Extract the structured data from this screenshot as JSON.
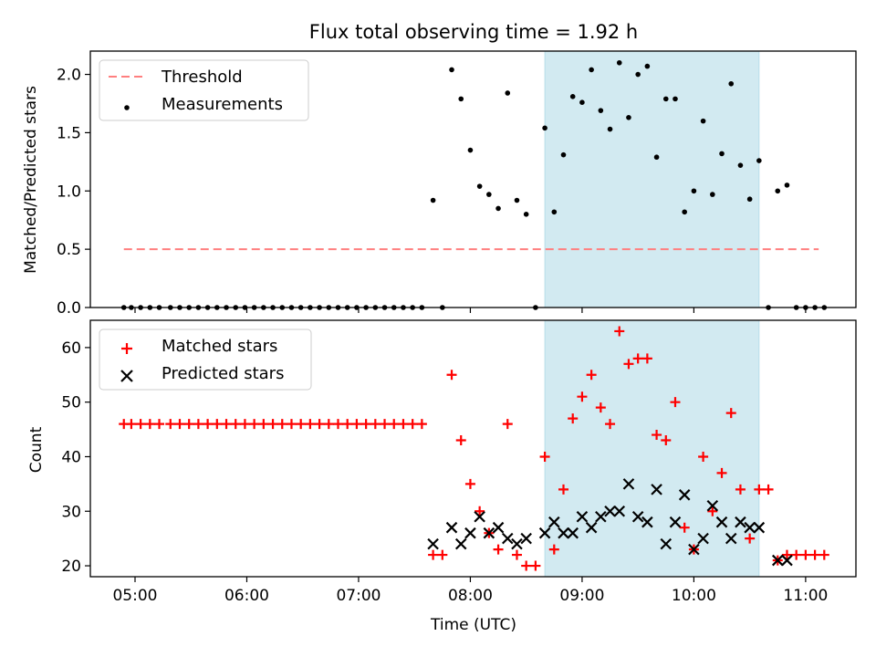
{
  "chart_data": [
    {
      "type": "scatter",
      "title": "Flux total observing time = 1.92 h",
      "xlabel": "",
      "ylabel": "Matched/Predicted stars",
      "ylim": [
        0,
        2.2
      ],
      "yticks": [
        "0.0",
        "0.5",
        "1.0",
        "1.5",
        "2.0"
      ],
      "xlim": [
        "04:36",
        "11:27"
      ],
      "highlight_span": {
        "start": "08:40",
        "end": "10:35",
        "color": "#add8e6"
      },
      "threshold": {
        "name": "Threshold",
        "y": 0.5,
        "x_start": "04:54",
        "x_end": "11:07",
        "color": "#ff7f7f",
        "style": "dashed"
      },
      "legend": {
        "location": "upper left",
        "entries": [
          "Threshold",
          "Measurements"
        ]
      },
      "series": [
        {
          "name": "Measurements",
          "color": "#000000",
          "marker": "dot",
          "points": [
            [
              "04:54",
              0
            ],
            [
              "04:58",
              0
            ],
            [
              "05:03",
              0
            ],
            [
              "05:08",
              0
            ],
            [
              "05:13",
              0
            ],
            [
              "05:19",
              0
            ],
            [
              "05:24",
              0
            ],
            [
              "05:29",
              0
            ],
            [
              "05:34",
              0
            ],
            [
              "05:39",
              0
            ],
            [
              "05:44",
              0
            ],
            [
              "05:49",
              0
            ],
            [
              "05:54",
              0
            ],
            [
              "05:59",
              0
            ],
            [
              "06:04",
              0
            ],
            [
              "06:09",
              0
            ],
            [
              "06:14",
              0
            ],
            [
              "06:19",
              0
            ],
            [
              "06:24",
              0
            ],
            [
              "06:29",
              0
            ],
            [
              "06:34",
              0
            ],
            [
              "06:39",
              0
            ],
            [
              "06:44",
              0
            ],
            [
              "06:49",
              0
            ],
            [
              "06:54",
              0
            ],
            [
              "06:59",
              0
            ],
            [
              "07:04",
              0
            ],
            [
              "07:09",
              0
            ],
            [
              "07:14",
              0
            ],
            [
              "07:19",
              0
            ],
            [
              "07:24",
              0
            ],
            [
              "07:29",
              0
            ],
            [
              "07:34",
              0
            ],
            [
              "07:40",
              0.92
            ],
            [
              "07:45",
              0
            ],
            [
              "07:50",
              2.04
            ],
            [
              "07:55",
              1.79
            ],
            [
              "08:00",
              1.35
            ],
            [
              "08:05",
              1.04
            ],
            [
              "08:10",
              0.97
            ],
            [
              "08:15",
              0.85
            ],
            [
              "08:20",
              1.84
            ],
            [
              "08:25",
              0.92
            ],
            [
              "08:30",
              0.8
            ],
            [
              "08:35",
              0
            ],
            [
              "08:40",
              1.54
            ],
            [
              "08:45",
              0.82
            ],
            [
              "08:50",
              1.31
            ],
            [
              "08:55",
              1.81
            ],
            [
              "09:00",
              1.76
            ],
            [
              "09:05",
              2.04
            ],
            [
              "09:10",
              1.69
            ],
            [
              "09:15",
              1.53
            ],
            [
              "09:20",
              2.1
            ],
            [
              "09:25",
              1.63
            ],
            [
              "09:30",
              2.0
            ],
            [
              "09:35",
              2.07
            ],
            [
              "09:40",
              1.29
            ],
            [
              "09:45",
              1.79
            ],
            [
              "09:50",
              1.79
            ],
            [
              "09:55",
              0.82
            ],
            [
              "10:00",
              1.0
            ],
            [
              "10:05",
              1.6
            ],
            [
              "10:10",
              0.97
            ],
            [
              "10:15",
              1.32
            ],
            [
              "10:20",
              1.92
            ],
            [
              "10:25",
              1.22
            ],
            [
              "10:30",
              0.93
            ],
            [
              "10:35",
              1.26
            ],
            [
              "10:40",
              0
            ],
            [
              "10:45",
              1.0
            ],
            [
              "10:50",
              1.05
            ],
            [
              "10:55",
              0
            ],
            [
              "11:00",
              0
            ],
            [
              "11:05",
              0
            ],
            [
              "11:10",
              0
            ]
          ]
        }
      ]
    },
    {
      "type": "scatter",
      "title": "",
      "xlabel": "Time (UTC)",
      "ylabel": "Count",
      "ylim": [
        18,
        65
      ],
      "yticks": [
        "20",
        "30",
        "40",
        "50",
        "60"
      ],
      "xticks": [
        "05:00",
        "06:00",
        "07:00",
        "08:00",
        "09:00",
        "10:00",
        "11:00"
      ],
      "xlim": [
        "04:36",
        "11:27"
      ],
      "highlight_span": {
        "start": "08:40",
        "end": "10:35",
        "color": "#add8e6"
      },
      "legend": {
        "location": "upper left",
        "entries": [
          "Matched stars",
          "Predicted stars"
        ]
      },
      "series": [
        {
          "name": "Matched stars",
          "color": "#ff0000",
          "marker": "plus",
          "points": [
            [
              "04:54",
              46
            ],
            [
              "04:58",
              46
            ],
            [
              "05:03",
              46
            ],
            [
              "05:08",
              46
            ],
            [
              "05:13",
              46
            ],
            [
              "05:19",
              46
            ],
            [
              "05:24",
              46
            ],
            [
              "05:29",
              46
            ],
            [
              "05:34",
              46
            ],
            [
              "05:39",
              46
            ],
            [
              "05:44",
              46
            ],
            [
              "05:49",
              46
            ],
            [
              "05:54",
              46
            ],
            [
              "05:59",
              46
            ],
            [
              "06:04",
              46
            ],
            [
              "06:09",
              46
            ],
            [
              "06:14",
              46
            ],
            [
              "06:19",
              46
            ],
            [
              "06:24",
              46
            ],
            [
              "06:29",
              46
            ],
            [
              "06:34",
              46
            ],
            [
              "06:39",
              46
            ],
            [
              "06:44",
              46
            ],
            [
              "06:49",
              46
            ],
            [
              "06:54",
              46
            ],
            [
              "06:59",
              46
            ],
            [
              "07:04",
              46
            ],
            [
              "07:09",
              46
            ],
            [
              "07:14",
              46
            ],
            [
              "07:19",
              46
            ],
            [
              "07:24",
              46
            ],
            [
              "07:29",
              46
            ],
            [
              "07:34",
              46
            ],
            [
              "07:40",
              22
            ],
            [
              "07:45",
              22
            ],
            [
              "07:50",
              55
            ],
            [
              "07:55",
              43
            ],
            [
              "08:00",
              35
            ],
            [
              "08:05",
              30
            ],
            [
              "08:10",
              26
            ],
            [
              "08:15",
              23
            ],
            [
              "08:20",
              46
            ],
            [
              "08:25",
              22
            ],
            [
              "08:30",
              20
            ],
            [
              "08:35",
              20
            ],
            [
              "08:40",
              40
            ],
            [
              "08:45",
              23
            ],
            [
              "08:50",
              34
            ],
            [
              "08:55",
              47
            ],
            [
              "09:00",
              51
            ],
            [
              "09:05",
              55
            ],
            [
              "09:10",
              49
            ],
            [
              "09:15",
              46
            ],
            [
              "09:20",
              63
            ],
            [
              "09:25",
              57
            ],
            [
              "09:30",
              58
            ],
            [
              "09:35",
              58
            ],
            [
              "09:40",
              44
            ],
            [
              "09:45",
              43
            ],
            [
              "09:50",
              50
            ],
            [
              "09:55",
              27
            ],
            [
              "10:00",
              23
            ],
            [
              "10:05",
              40
            ],
            [
              "10:10",
              30
            ],
            [
              "10:15",
              37
            ],
            [
              "10:20",
              48
            ],
            [
              "10:25",
              34
            ],
            [
              "10:30",
              25
            ],
            [
              "10:35",
              34
            ],
            [
              "10:40",
              34
            ],
            [
              "10:45",
              21
            ],
            [
              "10:50",
              22
            ],
            [
              "10:55",
              22
            ],
            [
              "11:00",
              22
            ],
            [
              "11:05",
              22
            ],
            [
              "11:10",
              22
            ]
          ]
        },
        {
          "name": "Predicted stars",
          "color": "#000000",
          "marker": "x",
          "points": [
            [
              "07:40",
              24
            ],
            [
              "07:50",
              27
            ],
            [
              "07:55",
              24
            ],
            [
              "08:00",
              26
            ],
            [
              "08:05",
              29
            ],
            [
              "08:10",
              26
            ],
            [
              "08:15",
              27
            ],
            [
              "08:20",
              25
            ],
            [
              "08:25",
              24
            ],
            [
              "08:30",
              25
            ],
            [
              "08:40",
              26
            ],
            [
              "08:45",
              28
            ],
            [
              "08:50",
              26
            ],
            [
              "08:55",
              26
            ],
            [
              "09:00",
              29
            ],
            [
              "09:05",
              27
            ],
            [
              "09:10",
              29
            ],
            [
              "09:15",
              30
            ],
            [
              "09:20",
              30
            ],
            [
              "09:25",
              35
            ],
            [
              "09:30",
              29
            ],
            [
              "09:35",
              28
            ],
            [
              "09:40",
              34
            ],
            [
              "09:45",
              24
            ],
            [
              "09:50",
              28
            ],
            [
              "09:55",
              33
            ],
            [
              "10:00",
              23
            ],
            [
              "10:05",
              25
            ],
            [
              "10:10",
              31
            ],
            [
              "10:15",
              28
            ],
            [
              "10:20",
              25
            ],
            [
              "10:25",
              28
            ],
            [
              "10:30",
              27
            ],
            [
              "10:35",
              27
            ],
            [
              "10:45",
              21
            ],
            [
              "10:50",
              21
            ]
          ]
        }
      ]
    }
  ]
}
